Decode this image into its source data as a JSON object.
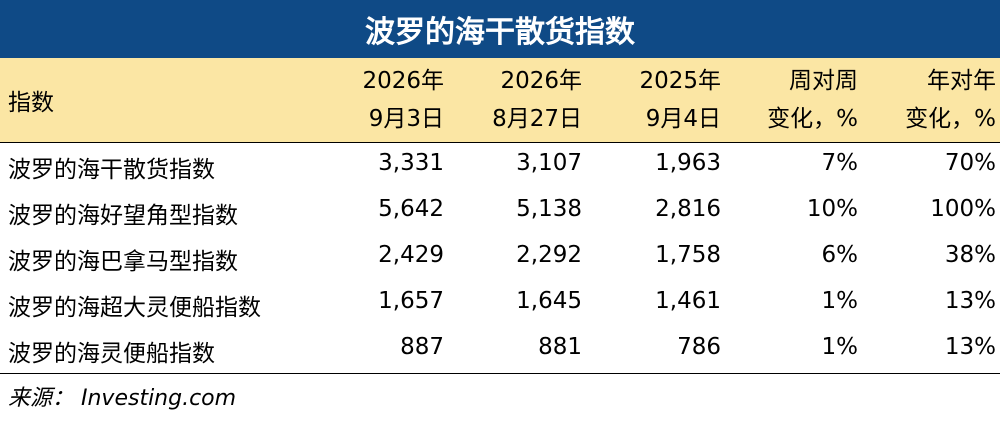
{
  "title": "波罗的海干散货指数",
  "header": {
    "label": "指数",
    "columns": [
      {
        "line1": "2026年",
        "line2": "9月3日"
      },
      {
        "line1": "2026年",
        "line2": "8月27日"
      },
      {
        "line1": "2025年",
        "line2": "9月4日"
      },
      {
        "line1": "周对周",
        "line2": "变化，%"
      },
      {
        "line1": "年对年",
        "line2": "变化，%"
      }
    ]
  },
  "rows": [
    {
      "name": "波罗的海干散货指数",
      "v1": "3,331",
      "v2": "3,107",
      "v3": "1,963",
      "wow": "7%",
      "yoy": "70%"
    },
    {
      "name": "波罗的海好望角型指数",
      "v1": "5,642",
      "v2": "5,138",
      "v3": "2,816",
      "wow": "10%",
      "yoy": "100%"
    },
    {
      "name": "波罗的海巴拿马型指数",
      "v1": "2,429",
      "v2": "2,292",
      "v3": "1,758",
      "wow": "6%",
      "yoy": "38%"
    },
    {
      "name": "波罗的海超大灵便船指数",
      "v1": "1,657",
      "v2": "1,645",
      "v3": "1,461",
      "wow": "1%",
      "yoy": "13%"
    },
    {
      "name": "波罗的海灵便船指数",
      "v1": "887",
      "v2": "881",
      "v3": "786",
      "wow": "1%",
      "yoy": "13%"
    }
  ],
  "source": "来源： Investing.com",
  "colors": {
    "title_bg": "#0f4a86",
    "header_bg": "#fbe6a4"
  }
}
